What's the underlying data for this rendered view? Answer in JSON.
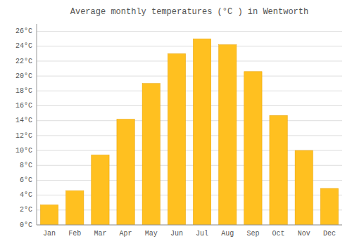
{
  "chart_data": {
    "type": "bar",
    "title": "Average monthly temperatures (°C ) in Wentworth",
    "categories": [
      "Jan",
      "Feb",
      "Mar",
      "Apr",
      "May",
      "Jun",
      "Jul",
      "Aug",
      "Sep",
      "Oct",
      "Nov",
      "Dec"
    ],
    "values": [
      2.7,
      4.6,
      9.4,
      14.2,
      19.0,
      23.0,
      25.0,
      24.2,
      20.6,
      14.7,
      10.0,
      4.9
    ],
    "color": "#FFC020",
    "ylim": [
      0,
      27
    ],
    "yticks": [
      {
        "value": 0,
        "label": "0°C"
      },
      {
        "value": 2,
        "label": "2°C"
      },
      {
        "value": 4,
        "label": "4°C"
      },
      {
        "value": 6,
        "label": "6°C"
      },
      {
        "value": 8,
        "label": "8°C"
      },
      {
        "value": 10,
        "label": "10°C"
      },
      {
        "value": 12,
        "label": "12°C"
      },
      {
        "value": 14,
        "label": "14°C"
      },
      {
        "value": 16,
        "label": "16°C"
      },
      {
        "value": 18,
        "label": "18°C"
      },
      {
        "value": 20,
        "label": "20°C"
      },
      {
        "value": 22,
        "label": "22°C"
      },
      {
        "value": 24,
        "label": "24°C"
      },
      {
        "value": 26,
        "label": "26°C"
      }
    ],
    "grid": true
  }
}
